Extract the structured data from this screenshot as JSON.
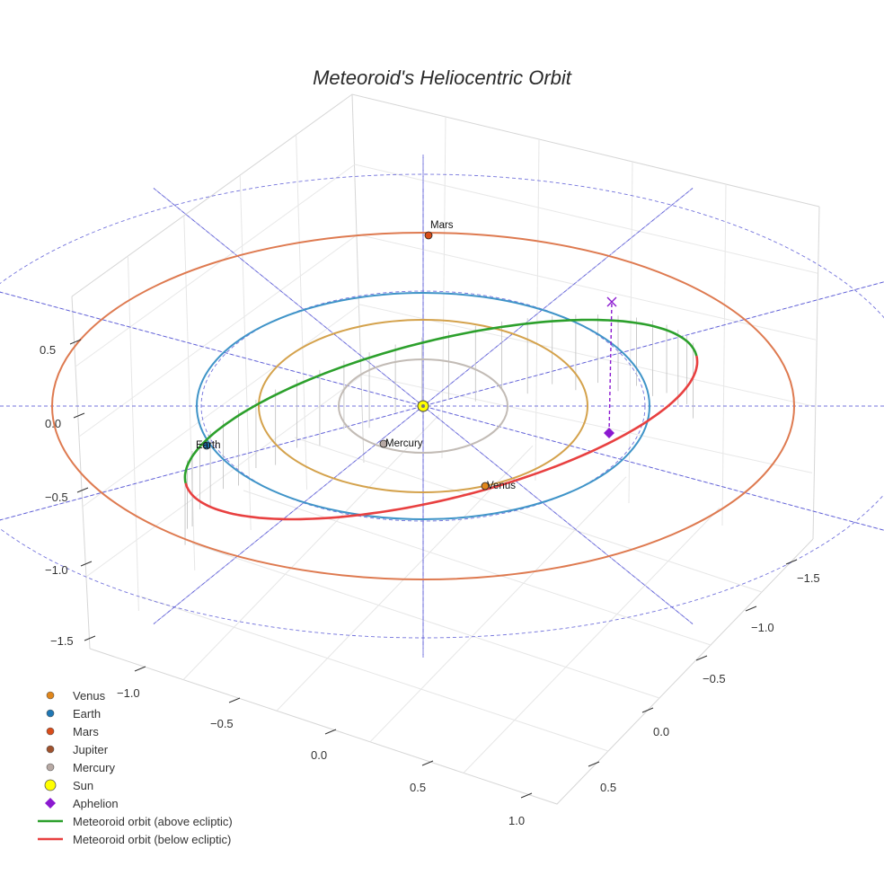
{
  "chart_data": {
    "type": "scatter3d",
    "title": "Meteoroid's Heliocentric Orbit",
    "xlabel": "",
    "ylabel": "",
    "zlabel": "",
    "z_ticks": [
      "0.5",
      "0.0",
      "−0.5",
      "−1.0",
      "−1.5"
    ],
    "left_axis_ticks": [
      "−1.0",
      "−0.5",
      "0.0",
      "0.5",
      "1.0"
    ],
    "right_axis_ticks": [
      "−1.5",
      "−1.0",
      "−0.5",
      "0.0",
      "0.5"
    ],
    "grid": true,
    "legend_position": "bottom-left",
    "planet_orbits": [
      {
        "name": "Mercury",
        "radius": 0.39,
        "color": "#c2bbb5"
      },
      {
        "name": "Venus",
        "radius": 0.72,
        "color": "#d4a24c"
      },
      {
        "name": "Earth",
        "radius": 1.0,
        "color": "#3f94c8"
      },
      {
        "name": "Mars",
        "radius": 1.52,
        "color": "#de7a50"
      }
    ],
    "planets": [
      {
        "name": "Mercury",
        "x": -0.05,
        "y": 0.4,
        "z": 0.0,
        "label": "Mercury",
        "color": "#b7a9a4"
      },
      {
        "name": "Venus",
        "x": 0.28,
        "y": 0.55,
        "z": 0.0,
        "label": "Venus",
        "color": "#e0861b"
      },
      {
        "name": "Earth",
        "x": -0.88,
        "y": 0.36,
        "z": 0.0,
        "label": "Earth",
        "color": "#1f77b4"
      },
      {
        "name": "Mars",
        "x": 0.02,
        "y": -1.45,
        "z": 0.0,
        "label": "Mars",
        "color": "#d94d1a"
      }
    ],
    "sun": {
      "x": 0.0,
      "y": 0.0,
      "z": 0.0,
      "color": "#ffff00"
    },
    "aphelion": {
      "x": 0.9,
      "y": 0.05,
      "z": -0.08,
      "color": "#8b19d0",
      "projection_height": 0.86
    },
    "meteoroid_orbit": {
      "above_color": "#2ca02c",
      "below_color": "#e84040"
    },
    "ecliptic_grid_color": "#5b5bd6",
    "legend": [
      {
        "label": "Venus",
        "symbol": "dot",
        "color": "#e0861b"
      },
      {
        "label": "Earth",
        "symbol": "dot",
        "color": "#1f77b4"
      },
      {
        "label": "Mars",
        "symbol": "dot",
        "color": "#d94d1a"
      },
      {
        "label": "Jupiter",
        "symbol": "dot",
        "color": "#a0522d"
      },
      {
        "label": "Mercury",
        "symbol": "dot",
        "color": "#b7a9a4"
      },
      {
        "label": "Sun",
        "symbol": "big-dot",
        "color": "#ffff00"
      },
      {
        "label": "Aphelion",
        "symbol": "diamond",
        "color": "#8b19d0"
      },
      {
        "label": "Meteoroid orbit (above ecliptic)",
        "symbol": "line",
        "color": "#2ca02c"
      },
      {
        "label": "Meteoroid orbit (below ecliptic)",
        "symbol": "line",
        "color": "#e84040"
      }
    ]
  }
}
